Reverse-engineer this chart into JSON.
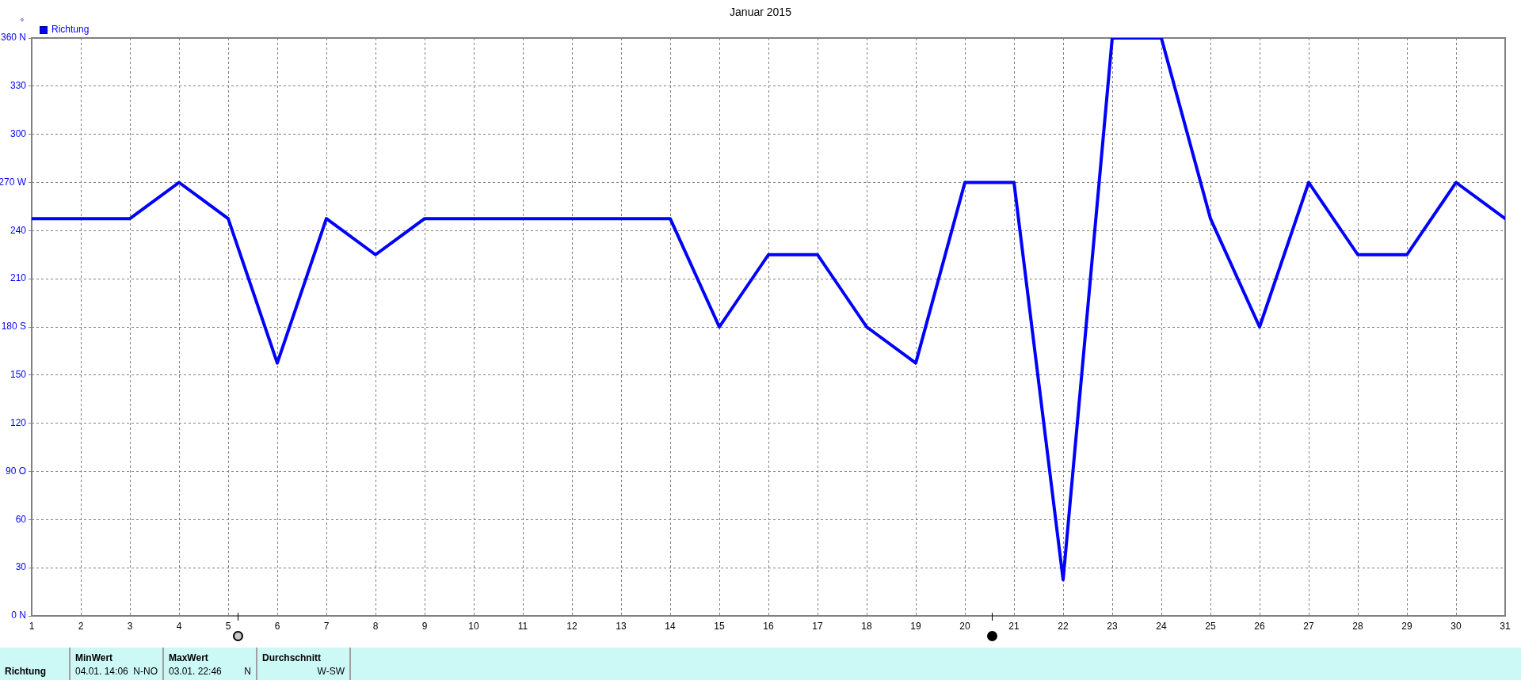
{
  "chart_data": {
    "type": "line",
    "title": "Januar 2015",
    "ylabel": "°",
    "x": [
      1,
      2,
      3,
      4,
      5,
      6,
      7,
      8,
      9,
      10,
      11,
      12,
      13,
      14,
      15,
      16,
      17,
      18,
      19,
      20,
      21,
      22,
      23,
      24,
      25,
      26,
      27,
      28,
      29,
      30,
      31
    ],
    "series": [
      {
        "name": "Richtung",
        "color": "#0000ff",
        "values": [
          247.5,
          247.5,
          247.5,
          270,
          247.5,
          157.5,
          247.5,
          225,
          247.5,
          247.5,
          247.5,
          247.5,
          247.5,
          247.5,
          180,
          225,
          225,
          180,
          157.5,
          270,
          270,
          22.5,
          360,
          360,
          247.5,
          180,
          270,
          225,
          225,
          270,
          247.5
        ]
      }
    ],
    "xlim": [
      1,
      31
    ],
    "xticks": [
      1,
      2,
      3,
      4,
      5,
      6,
      7,
      8,
      9,
      10,
      11,
      12,
      13,
      14,
      15,
      16,
      17,
      18,
      19,
      20,
      21,
      22,
      23,
      24,
      25,
      26,
      27,
      28,
      29,
      30,
      31
    ],
    "ylim": [
      0,
      360
    ],
    "yticks": [
      {
        "value": 0,
        "label": "0 N"
      },
      30,
      60,
      {
        "value": 90,
        "label": "90 O"
      },
      120,
      150,
      {
        "value": 180,
        "label": "180 S"
      },
      210,
      240,
      {
        "value": 270,
        "label": "270 W"
      },
      300,
      330,
      {
        "value": 360,
        "label": "360 N"
      }
    ],
    "grid": true,
    "legend": "top left",
    "marker": "none",
    "line_style": "solid",
    "annotations": [
      "Richtung",
      "MinWert",
      "04.01. 14:06",
      "N-NO",
      "MaxWert",
      "03.01. 22:46",
      "N",
      "Durchschnitt",
      "W-SW"
    ]
  }
}
